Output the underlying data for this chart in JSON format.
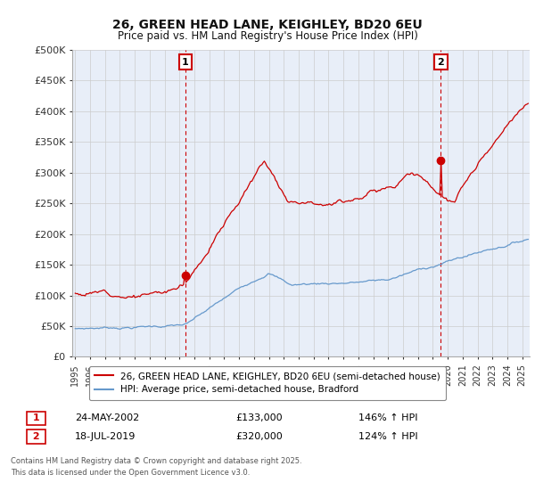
{
  "title": "26, GREEN HEAD LANE, KEIGHLEY, BD20 6EU",
  "subtitle": "Price paid vs. HM Land Registry's House Price Index (HPI)",
  "ylabel_ticks": [
    "£0",
    "£50K",
    "£100K",
    "£150K",
    "£200K",
    "£250K",
    "£300K",
    "£350K",
    "£400K",
    "£450K",
    "£500K"
  ],
  "ytick_values": [
    0,
    50000,
    100000,
    150000,
    200000,
    250000,
    300000,
    350000,
    400000,
    450000,
    500000
  ],
  "xlim": [
    1994.8,
    2025.5
  ],
  "ylim": [
    0,
    500000
  ],
  "xtick_years": [
    1995,
    1996,
    1997,
    1998,
    1999,
    2000,
    2001,
    2002,
    2003,
    2004,
    2005,
    2006,
    2007,
    2008,
    2009,
    2010,
    2011,
    2012,
    2013,
    2014,
    2015,
    2016,
    2017,
    2018,
    2019,
    2020,
    2021,
    2022,
    2023,
    2024,
    2025
  ],
  "sale1_x": 2002.39,
  "sale1_y": 133000,
  "sale1_label": "1",
  "sale2_x": 2019.54,
  "sale2_y": 320000,
  "sale2_label": "2",
  "red_line_color": "#cc0000",
  "blue_line_color": "#6699cc",
  "annotation_box_color": "#cc0000",
  "grid_color": "#cccccc",
  "plot_bg_color": "#e8eef8",
  "fig_bg_color": "#ffffff",
  "legend_label_red": "26, GREEN HEAD LANE, KEIGHLEY, BD20 6EU (semi-detached house)",
  "legend_label_blue": "HPI: Average price, semi-detached house, Bradford",
  "footer_line1": "Contains HM Land Registry data © Crown copyright and database right 2025.",
  "footer_line2": "This data is licensed under the Open Government Licence v3.0.",
  "table_row1": [
    "1",
    "24-MAY-2002",
    "£133,000",
    "146% ↑ HPI"
  ],
  "table_row2": [
    "2",
    "18-JUL-2019",
    "£320,000",
    "124% ↑ HPI"
  ]
}
